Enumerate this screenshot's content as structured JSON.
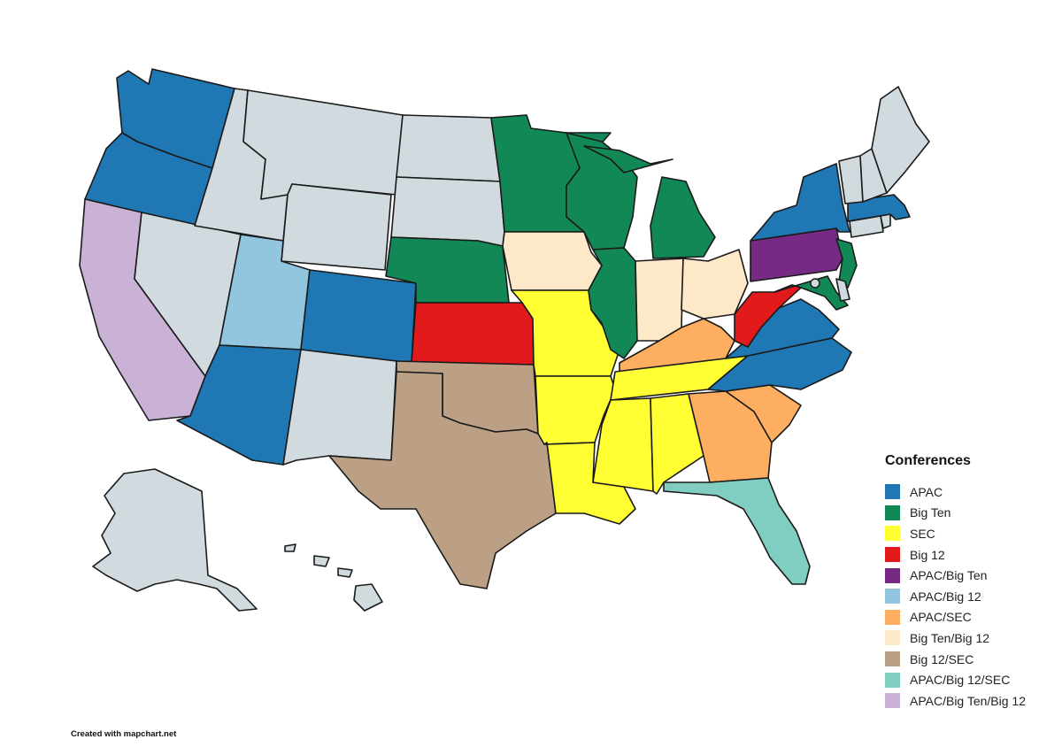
{
  "legend": {
    "title": "Conferences",
    "items": [
      {
        "label": "APAC",
        "color": "#1f77b4"
      },
      {
        "label": "Big Ten",
        "color": "#118855"
      },
      {
        "label": "SEC",
        "color": "#ffff33"
      },
      {
        "label": "Big 12",
        "color": "#e31a1c"
      },
      {
        "label": "APAC/Big Ten",
        "color": "#762a83"
      },
      {
        "label": "APAC/Big 12",
        "color": "#92c5de"
      },
      {
        "label": "APAC/SEC",
        "color": "#fdae61"
      },
      {
        "label": "Big Ten/Big 12",
        "color": "#fde8c8"
      },
      {
        "label": "Big 12/SEC",
        "color": "#bca085"
      },
      {
        "label": "APAC/Big 12/SEC",
        "color": "#80cdc1"
      },
      {
        "label": "APAC/Big Ten/Big 12",
        "color": "#c9b2d6"
      }
    ]
  },
  "unassigned_color": "#d1dbdf",
  "state_conferences": {
    "WA": "APAC",
    "OR": "APAC",
    "CA": "APAC/Big Ten/Big 12",
    "NV": "",
    "ID": "",
    "MT": "",
    "WY": "",
    "UT": "APAC/Big 12",
    "CO": "APAC",
    "AZ": "APAC",
    "NM": "",
    "ND": "",
    "SD": "",
    "NE": "Big Ten",
    "KS": "Big 12",
    "OK": "Big 12/SEC",
    "TX": "Big 12/SEC",
    "MN": "Big Ten",
    "IA": "Big Ten/Big 12",
    "MO": "SEC",
    "AR": "SEC",
    "LA": "SEC",
    "WI": "Big Ten",
    "IL": "Big Ten",
    "MI": "Big Ten",
    "IN": "Big Ten/Big 12",
    "OH": "Big Ten/Big 12",
    "KY": "APAC/SEC",
    "TN": "SEC",
    "MS": "SEC",
    "AL": "SEC",
    "GA": "APAC/SEC",
    "SC": "APAC/SEC",
    "FL": "APAC/Big 12/SEC",
    "NC": "APAC",
    "VA": "APAC",
    "WV": "Big 12",
    "PA": "APAC/Big Ten",
    "NY": "APAC",
    "NJ": "Big Ten",
    "MD": "Big Ten",
    "DE": "",
    "DC": "",
    "CT": "",
    "RI": "",
    "MA": "APAC",
    "VT": "",
    "NH": "",
    "ME": "",
    "AK": "",
    "HI": ""
  },
  "credit": "Created with mapchart.net"
}
